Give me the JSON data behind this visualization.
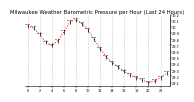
{
  "title": "Milwaukee Weather Barometric Pressure per Hour (Last 24 Hours)",
  "hours": [
    0,
    1,
    2,
    3,
    4,
    5,
    6,
    7,
    8,
    9,
    10,
    11,
    12,
    13,
    14,
    15,
    16,
    17,
    18,
    19,
    20,
    21,
    22,
    23
  ],
  "pressure": [
    30.02,
    29.98,
    29.88,
    29.75,
    29.7,
    29.78,
    29.92,
    30.08,
    30.12,
    30.05,
    29.95,
    29.8,
    29.65,
    29.52,
    29.42,
    29.35,
    29.28,
    29.22,
    29.18,
    29.14,
    29.1,
    29.12,
    29.18,
    29.25
  ],
  "ylim": [
    29.05,
    30.2
  ],
  "yticks": [
    29.1,
    29.2,
    29.3,
    29.4,
    29.5,
    29.6,
    29.7,
    29.8,
    29.9,
    30.0,
    30.1,
    30.2
  ],
  "ytick_labels": [
    "29.1",
    "29.2",
    "29.3",
    "29.4",
    "29.5",
    "29.6",
    "29.7",
    "29.8",
    "29.9",
    "30",
    "30.1",
    "30.2"
  ],
  "bg_color": "#ffffff",
  "line_color": "#ff0000",
  "marker_color": "#000000",
  "grid_color": "#c8c8c8",
  "title_fontsize": 3.8,
  "tick_fontsize": 2.5
}
